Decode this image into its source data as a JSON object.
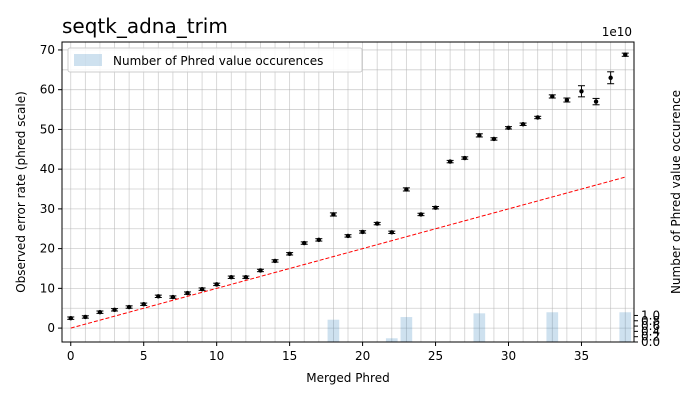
{
  "chart_data": {
    "type": "scatter",
    "title": "seqtk_adna_trim",
    "xlabel": "Merged Phred",
    "ylabel": "Observed error rate (phred scale)",
    "y2label": "Number of Phred value occurence",
    "y2_offset_label": "1e10",
    "xlim": [
      -0.6,
      38.6
    ],
    "ylim": [
      -3.5,
      72
    ],
    "y2lim": [
      0,
      11.3
    ],
    "xticks": [
      0,
      5,
      10,
      15,
      20,
      25,
      30,
      35
    ],
    "yticks": [
      0,
      10,
      20,
      30,
      40,
      50,
      60,
      70
    ],
    "y2ticks": [
      0.0,
      0.2,
      0.4,
      0.6,
      0.8,
      1.0
    ],
    "grid": true,
    "legend": {
      "location": "upper-left",
      "entries": [
        "Number of Phred value occurences"
      ]
    },
    "series": [
      {
        "kind": "bar",
        "axis": "right",
        "color": "#1f77b4",
        "alpha": 0.22,
        "x": [
          0,
          1,
          2,
          3,
          4,
          5,
          6,
          7,
          8,
          9,
          10,
          11,
          12,
          13,
          14,
          15,
          16,
          17,
          18,
          19,
          20,
          21,
          22,
          23,
          24,
          25,
          26,
          27,
          28,
          29,
          30,
          31,
          32,
          33,
          34,
          35,
          36,
          37,
          38
        ],
        "values": [
          0.008,
          0.001,
          0.001,
          0.001,
          0.001,
          0.001,
          0.001,
          0.001,
          0.001,
          0.001,
          0.001,
          0.001,
          0.001,
          0.003,
          0.004,
          0.004,
          0.004,
          0.005,
          0.84,
          0.004,
          0.004,
          0.004,
          0.14,
          0.94,
          0.008,
          0.004,
          0.004,
          0.007,
          1.08,
          0.006,
          0.004,
          0.004,
          0.006,
          1.12,
          0.004,
          0.004,
          0.004,
          0.006,
          1.12
        ]
      },
      {
        "kind": "errorbar",
        "axis": "left",
        "color": "#000000",
        "x": [
          0,
          1,
          2,
          3,
          4,
          5,
          6,
          7,
          8,
          9,
          10,
          11,
          12,
          13,
          14,
          15,
          16,
          17,
          18,
          19,
          20,
          21,
          22,
          23,
          24,
          25,
          26,
          27,
          28,
          29,
          30,
          31,
          32,
          33,
          34,
          35,
          36,
          37,
          38
        ],
        "y": [
          2.5,
          2.8,
          4,
          4.6,
          5.3,
          6,
          8,
          7.8,
          8.8,
          9.8,
          11,
          12.8,
          12.8,
          14.5,
          16.9,
          18.7,
          21.4,
          22.2,
          28.6,
          23.2,
          24.2,
          26.3,
          24.1,
          34.9,
          28.6,
          30.3,
          41.9,
          42.8,
          48.5,
          47.6,
          50.4,
          51.3,
          53,
          58.3,
          57.4,
          59.6,
          57,
          63,
          68.8
        ],
        "err": [
          0.3,
          0.3,
          0.3,
          0.3,
          0.3,
          0.3,
          0.3,
          0.3,
          0.3,
          0.3,
          0.3,
          0.3,
          0.3,
          0.3,
          0.3,
          0.3,
          0.3,
          0.3,
          0.4,
          0.3,
          0.3,
          0.3,
          0.3,
          0.4,
          0.3,
          0.3,
          0.3,
          0.3,
          0.4,
          0.3,
          0.3,
          0.3,
          0.3,
          0.4,
          0.5,
          1.4,
          0.8,
          1.5,
          0.4
        ]
      },
      {
        "kind": "reference-line",
        "axis": "left",
        "color": "#ff0000",
        "style": "dashed",
        "x": [
          0,
          38
        ],
        "y": [
          0,
          38
        ]
      }
    ]
  }
}
